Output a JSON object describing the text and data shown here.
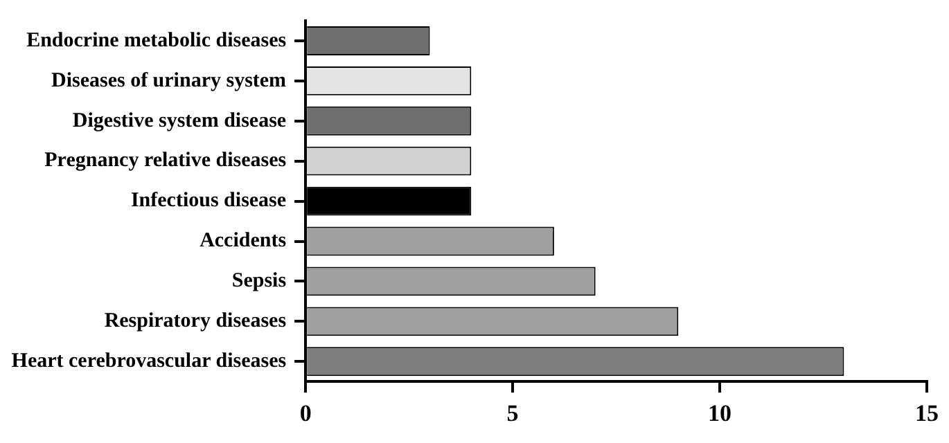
{
  "chart_data": {
    "type": "bar",
    "orientation": "horizontal",
    "categories": [
      "Endocrine metabolic diseases",
      "Diseases of urinary system",
      "Digestive system disease",
      "Pregnancy relative diseases",
      "Infectious disease",
      "Accidents",
      "Sepsis",
      "Respiratory diseases",
      "Heart cerebrovascular diseases"
    ],
    "values": [
      3,
      4,
      4,
      4,
      4,
      6,
      7,
      9,
      13
    ],
    "colors": [
      "#6e6e6e",
      "#e4e4e4",
      "#6e6e6e",
      "#d2d2d2",
      "#000000",
      "#a0a0a0",
      "#a0a0a0",
      "#a0a0a0",
      "#7f7f7f"
    ],
    "xlim": [
      0,
      15
    ],
    "xticks": [
      0,
      5,
      10,
      15
    ],
    "grid": false,
    "legend": false
  }
}
